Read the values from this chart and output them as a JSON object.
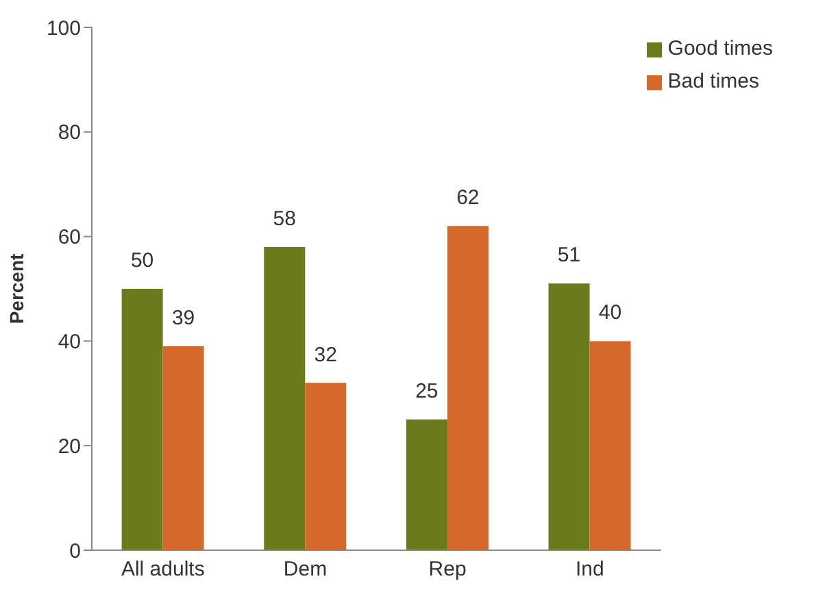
{
  "chart_data": {
    "type": "bar",
    "ylabel": "Percent",
    "categories": [
      "All adults",
      "Dem",
      "Rep",
      "Ind"
    ],
    "series": [
      {
        "name": "Good times",
        "color": "#6b7a1c",
        "values": [
          50,
          58,
          25,
          51
        ]
      },
      {
        "name": "Bad times",
        "color": "#d4692b",
        "values": [
          39,
          32,
          62,
          40
        ]
      }
    ],
    "ylim": [
      0,
      100
    ],
    "yticks": [
      0,
      20,
      40,
      60,
      80,
      100
    ],
    "grid": false,
    "legend": "top right",
    "data_labels": true
  }
}
